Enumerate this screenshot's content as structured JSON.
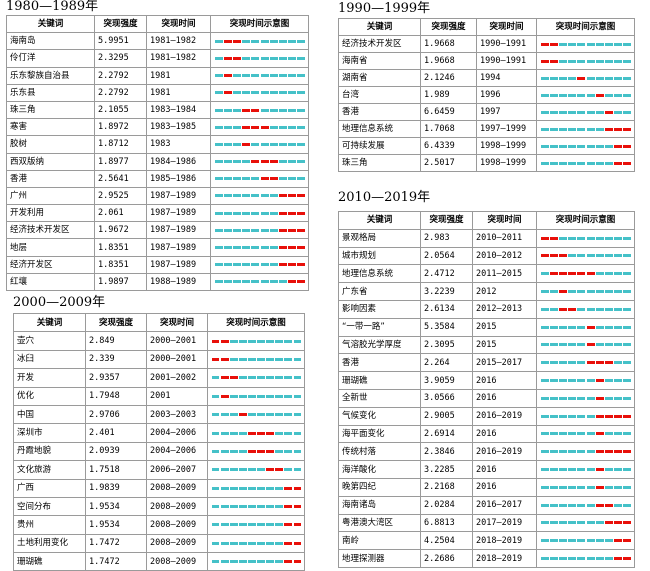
{
  "colors": {
    "base": "#45c1c8",
    "burst": "#e8100a"
  },
  "headers": [
    "关键词",
    "突现强度",
    "突现时间",
    "突现时间示意图"
  ],
  "panels": [
    {
      "title": "1980—1989年",
      "start": 1980,
      "end": 1989,
      "rows": [
        [
          "海南岛",
          "5.9951",
          "1981—1982"
        ],
        [
          "伶仃洋",
          "2.3295",
          "1981—1982"
        ],
        [
          "乐东黎族自治县",
          "2.2792",
          "1981"
        ],
        [
          "乐东县",
          "2.2792",
          "1981"
        ],
        [
          "珠三角",
          "2.1055",
          "1983—1984"
        ],
        [
          "寒害",
          "1.8972",
          "1983—1985"
        ],
        [
          "胶树",
          "1.8712",
          "1983"
        ],
        [
          "西双版纳",
          "1.8977",
          "1984—1986"
        ],
        [
          "香港",
          "2.5641",
          "1985—1986"
        ],
        [
          "广州",
          "2.9525",
          "1987—1989"
        ],
        [
          "开发利用",
          "2.061",
          "1987—1989"
        ],
        [
          "经济技术开发区",
          "1.9672",
          "1987—1989"
        ],
        [
          "地层",
          "1.8351",
          "1987—1989"
        ],
        [
          "经济开发区",
          "1.8351",
          "1987—1989"
        ],
        [
          "红壤",
          "1.9897",
          "1988—1989"
        ]
      ]
    },
    {
      "title": "1990—1999年",
      "start": 1990,
      "end": 1999,
      "rows": [
        [
          "经济技术开发区",
          "1.9668",
          "1990—1991"
        ],
        [
          "海南省",
          "1.9668",
          "1990—1991"
        ],
        [
          "湖南省",
          "2.1246",
          "1994"
        ],
        [
          "台湾",
          "1.989",
          "1996"
        ],
        [
          "香港",
          "6.6459",
          "1997"
        ],
        [
          "地理信息系统",
          "1.7068",
          "1997—1999"
        ],
        [
          "可持续发展",
          "6.4339",
          "1998—1999"
        ],
        [
          "珠三角",
          "2.5017",
          "1998—1999"
        ]
      ]
    },
    {
      "title": "2000—2009年",
      "start": 2000,
      "end": 2009,
      "rows": [
        [
          "壶穴",
          "2.849",
          "2000—2001"
        ],
        [
          "冰臼",
          "2.339",
          "2000—2001"
        ],
        [
          "开发",
          "2.9357",
          "2001—2002"
        ],
        [
          "优化",
          "1.7948",
          "2001"
        ],
        [
          "中国",
          "2.9706",
          "2003—2003"
        ],
        [
          "深圳市",
          "2.401",
          "2004—2006"
        ],
        [
          "丹霞地貌",
          "2.0939",
          "2004—2006"
        ],
        [
          "文化旅游",
          "1.7518",
          "2006—2007"
        ],
        [
          "广西",
          "1.9839",
          "2008—2009"
        ],
        [
          "空间分布",
          "1.9534",
          "2008—2009"
        ],
        [
          "贵州",
          "1.9534",
          "2008—2009"
        ],
        [
          "土地利用变化",
          "1.7472",
          "2008—2009"
        ],
        [
          "珊瑚礁",
          "1.7472",
          "2008—2009"
        ]
      ]
    },
    {
      "title": "2010—2019年",
      "start": 2010,
      "end": 2019,
      "rows": [
        [
          "景观格局",
          "2.983",
          "2010—2011"
        ],
        [
          "城市规划",
          "2.0564",
          "2010—2012"
        ],
        [
          "地理信息系统",
          "2.4712",
          "2011—2015"
        ],
        [
          "广东省",
          "3.2239",
          "2012"
        ],
        [
          "影响因素",
          "2.6134",
          "2012—2013"
        ],
        [
          "“一带一路”",
          "5.3584",
          "2015"
        ],
        [
          "气溶胶光学厚度",
          "2.3095",
          "2015"
        ],
        [
          "香港",
          "2.264",
          "2015—2017"
        ],
        [
          "珊瑚礁",
          "3.9059",
          "2016"
        ],
        [
          "全新世",
          "3.0566",
          "2016"
        ],
        [
          "气候变化",
          "2.9005",
          "2016—2019"
        ],
        [
          "海平面变化",
          "2.6914",
          "2016"
        ],
        [
          "传统村落",
          "2.3846",
          "2016—2019"
        ],
        [
          "海洋酸化",
          "3.2285",
          "2016"
        ],
        [
          "晚第四纪",
          "2.2168",
          "2016"
        ],
        [
          "海南诸岛",
          "2.0284",
          "2016—2017"
        ],
        [
          "粤港澳大湾区",
          "6.8813",
          "2017—2019"
        ],
        [
          "南岭",
          "4.2504",
          "2018—2019"
        ],
        [
          "地理探测器",
          "2.2686",
          "2018—2019"
        ]
      ]
    }
  ]
}
